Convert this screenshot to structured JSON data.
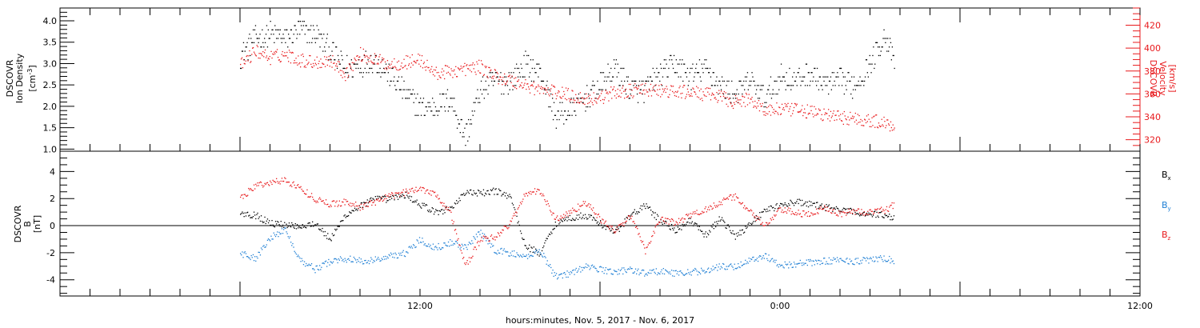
{
  "chart_data": [
    {
      "type": "scatter",
      "title": "",
      "panel": "upper",
      "xlabel": "hours:minutes, Nov. 5, 2017 - Nov. 6, 2017",
      "x_tick_labels": [
        "12:00",
        "0:00",
        "12:00"
      ],
      "x_range_hours": [
        -6.0,
        30.0
      ],
      "x_data_range_hours": [
        0.0,
        21.8
      ],
      "left_axis": {
        "label_lines": [
          "DSCOVR",
          "Ion Density",
          "[cm",
          "-3",
          "]"
        ],
        "ticks": [
          1.0,
          1.5,
          2.0,
          2.5,
          3.0,
          3.5,
          4.0
        ],
        "tick_labels": [
          "1.0",
          "1.5",
          "2.0",
          "2.5",
          "3.0",
          "3.5",
          "4.0"
        ],
        "ylim": [
          0.95,
          4.3
        ],
        "color": "#000000"
      },
      "right_axis": {
        "label_lines": [
          "DSCOVR",
          "Velocity",
          "[km/s]"
        ],
        "ticks": [
          320,
          340,
          360,
          380,
          400,
          420
        ],
        "tick_labels": [
          "320",
          "340",
          "360",
          "380",
          "400",
          "420"
        ],
        "ylim": [
          310,
          435
        ],
        "color": "#e8191c"
      },
      "series": [
        {
          "axis": "left",
          "color": "#000000",
          "x_hours": [
            0.0,
            0.5,
            1.0,
            1.5,
            2.0,
            2.5,
            3.0,
            3.5,
            4.0,
            4.5,
            5.0,
            5.5,
            6.0,
            6.5,
            7.0,
            7.5,
            8.0,
            8.5,
            9.0,
            9.5,
            10.0,
            10.5,
            11.0,
            11.5,
            12.0,
            12.5,
            13.0,
            13.5,
            14.0,
            14.5,
            15.0,
            15.5,
            16.0,
            16.5,
            17.0,
            17.5,
            18.0,
            18.5,
            19.0,
            19.5,
            20.0,
            20.5,
            21.0,
            21.5,
            21.8
          ],
          "values": [
            3.2,
            3.6,
            3.7,
            3.6,
            3.8,
            3.7,
            3.3,
            2.9,
            3.0,
            3.1,
            2.7,
            2.3,
            2.0,
            2.0,
            2.2,
            1.3,
            2.4,
            2.6,
            2.6,
            3.0,
            2.8,
            1.8,
            1.9,
            2.2,
            2.5,
            2.9,
            2.4,
            2.4,
            2.8,
            3.0,
            2.7,
            2.9,
            2.5,
            2.3,
            2.6,
            2.2,
            2.7,
            2.6,
            2.8,
            2.5,
            2.6,
            2.5,
            3.0,
            3.7,
            3.0
          ]
        },
        {
          "axis": "right",
          "color": "#e8191c",
          "x_hours": [
            0.0,
            0.5,
            1.0,
            1.5,
            2.0,
            2.5,
            3.0,
            3.5,
            4.0,
            4.5,
            5.0,
            5.5,
            6.0,
            6.5,
            7.0,
            7.5,
            8.0,
            8.5,
            9.0,
            9.5,
            10.0,
            10.5,
            11.0,
            11.5,
            12.0,
            12.5,
            13.0,
            13.5,
            14.0,
            14.5,
            15.0,
            15.5,
            16.0,
            16.5,
            17.0,
            17.5,
            18.0,
            18.5,
            19.0,
            19.5,
            20.0,
            20.5,
            21.0,
            21.5,
            21.8
          ],
          "values": [
            385,
            398,
            392,
            395,
            390,
            388,
            390,
            378,
            395,
            390,
            386,
            388,
            390,
            378,
            380,
            382,
            384,
            376,
            372,
            368,
            364,
            362,
            359,
            356,
            357,
            362,
            363,
            364,
            363,
            362,
            362,
            360,
            358,
            353,
            356,
            346,
            347,
            346,
            345,
            342,
            340,
            339,
            337,
            335,
            332
          ]
        }
      ]
    },
    {
      "type": "scatter",
      "title": "",
      "panel": "lower",
      "xlabel": "hours:minutes, Nov. 5, 2017 - Nov. 6, 2017",
      "x_tick_labels": [
        "12:00",
        "0:00",
        "12:00"
      ],
      "x_range_hours": [
        -6.0,
        30.0
      ],
      "left_axis": {
        "label_lines": [
          "DSCOVR",
          "B",
          "[nT]"
        ],
        "ticks": [
          -4,
          -2,
          0,
          2,
          4
        ],
        "tick_labels": [
          "-4",
          "-2",
          "0",
          "2",
          "4"
        ],
        "ylim": [
          -5.2,
          5.5
        ]
      },
      "zero_line": true,
      "legend_position": "right",
      "series": [
        {
          "label_main": "B",
          "label_sub": "x",
          "color": "#000000",
          "x_hours": [
            0.0,
            0.5,
            1.0,
            1.5,
            2.0,
            2.5,
            3.0,
            3.5,
            4.0,
            4.5,
            5.0,
            5.5,
            6.0,
            6.5,
            7.0,
            7.5,
            8.0,
            8.5,
            9.0,
            9.5,
            10.0,
            10.5,
            11.0,
            11.5,
            12.0,
            12.5,
            13.0,
            13.5,
            14.0,
            14.5,
            15.0,
            15.5,
            16.0,
            16.5,
            17.0,
            17.5,
            18.0,
            18.5,
            19.0,
            19.5,
            20.0,
            20.5,
            21.0,
            21.5,
            21.8
          ],
          "values": [
            1.0,
            0.8,
            0.2,
            0.1,
            0.0,
            0.2,
            -1.0,
            0.8,
            1.5,
            2.0,
            2.0,
            2.3,
            1.6,
            1.0,
            1.3,
            2.5,
            2.4,
            2.6,
            2.2,
            -1.5,
            -2.0,
            0.2,
            0.6,
            0.8,
            0.2,
            -0.5,
            0.8,
            1.5,
            0.4,
            -0.3,
            0.4,
            -0.7,
            0.6,
            -0.8,
            0.2,
            1.2,
            1.5,
            1.8,
            1.6,
            1.4,
            1.2,
            1.0,
            0.9,
            0.8,
            0.6
          ]
        },
        {
          "label_main": "B",
          "label_sub": "y",
          "color": "#1f7fd4",
          "x_hours": [
            0.0,
            0.5,
            1.0,
            1.5,
            2.0,
            2.5,
            3.0,
            3.5,
            4.0,
            4.5,
            5.0,
            5.5,
            6.0,
            6.5,
            7.0,
            7.5,
            8.0,
            8.5,
            9.0,
            9.5,
            10.0,
            10.5,
            11.0,
            11.5,
            12.0,
            12.5,
            13.0,
            13.5,
            14.0,
            14.5,
            15.0,
            15.5,
            16.0,
            16.5,
            17.0,
            17.5,
            18.0,
            18.5,
            19.0,
            19.5,
            20.0,
            20.5,
            21.0,
            21.5,
            21.8
          ],
          "values": [
            -2.0,
            -2.4,
            -0.8,
            -0.3,
            -2.5,
            -3.2,
            -2.6,
            -2.4,
            -2.6,
            -2.5,
            -2.2,
            -2.0,
            -1.0,
            -1.6,
            -1.2,
            -1.6,
            -0.5,
            -1.8,
            -2.0,
            -2.3,
            -1.8,
            -3.7,
            -3.5,
            -3.0,
            -3.2,
            -3.4,
            -3.2,
            -3.5,
            -3.3,
            -3.5,
            -3.4,
            -3.3,
            -3.0,
            -3.0,
            -2.5,
            -2.2,
            -2.9,
            -2.8,
            -2.7,
            -2.6,
            -2.5,
            -2.6,
            -2.5,
            -2.4,
            -2.6
          ]
        },
        {
          "label_main": "B",
          "label_sub": "z",
          "color": "#e8191c",
          "x_hours": [
            0.0,
            0.5,
            1.0,
            1.5,
            2.0,
            2.5,
            3.0,
            3.5,
            4.0,
            4.5,
            5.0,
            5.5,
            6.0,
            6.5,
            7.0,
            7.5,
            8.0,
            8.5,
            9.0,
            9.5,
            10.0,
            10.5,
            11.0,
            11.5,
            12.0,
            12.5,
            13.0,
            13.5,
            14.0,
            14.5,
            15.0,
            15.5,
            16.0,
            16.5,
            17.0,
            17.5,
            18.0,
            18.5,
            19.0,
            19.5,
            20.0,
            20.5,
            21.0,
            21.5,
            21.8
          ],
          "values": [
            2.0,
            3.0,
            3.2,
            3.4,
            2.8,
            2.0,
            1.6,
            1.8,
            1.4,
            1.8,
            2.2,
            2.5,
            2.8,
            2.4,
            1.0,
            -3.0,
            -1.0,
            -0.8,
            0.2,
            2.4,
            2.6,
            0.5,
            1.0,
            1.8,
            0.5,
            -0.4,
            0.8,
            -1.8,
            0.6,
            0.2,
            0.8,
            1.2,
            1.8,
            2.2,
            1.0,
            0.0,
            1.2,
            1.0,
            0.8,
            1.4,
            0.9,
            1.1,
            1.0,
            1.2,
            1.6
          ]
        }
      ]
    }
  ]
}
